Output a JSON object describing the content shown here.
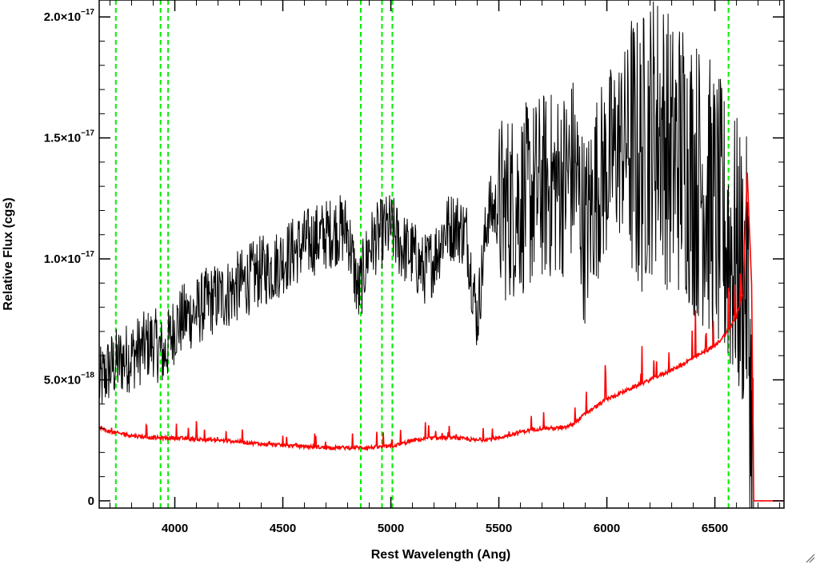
{
  "chart_data": {
    "type": "line",
    "title": "",
    "xlabel": "Rest Wavelength (Ang)",
    "ylabel": "Relative Flux (cgs)",
    "xlim": [
      3650,
      6820
    ],
    "ylim": [
      -3e-19,
      2.07e-17
    ],
    "x_ticks": [
      {
        "value": 4000,
        "label": "4000"
      },
      {
        "value": 4500,
        "label": "4500"
      },
      {
        "value": 5000,
        "label": "5000"
      },
      {
        "value": 5500,
        "label": "5500"
      },
      {
        "value": 6000,
        "label": "6000"
      },
      {
        "value": 6500,
        "label": "6500"
      }
    ],
    "y_ticks": [
      {
        "value": 0,
        "mant": "0",
        "exp": ""
      },
      {
        "value": 5e-18,
        "mant": "5.0×10",
        "exp": "−18"
      },
      {
        "value": 1e-17,
        "mant": "1.0×10",
        "exp": "−17"
      },
      {
        "value": 1.5e-17,
        "mant": "1.5×10",
        "exp": "−17"
      },
      {
        "value": 2e-17,
        "mant": "2.0×10",
        "exp": "−17"
      }
    ],
    "series": [
      {
        "color": "#000000",
        "x": [
          3650,
          3700,
          3750,
          3800,
          3850,
          3900,
          3950,
          4000,
          4050,
          4100,
          4150,
          4200,
          4250,
          4300,
          4350,
          4400,
          4450,
          4500,
          4550,
          4600,
          4650,
          4700,
          4750,
          4800,
          4850,
          4900,
          4950,
          5000,
          5050,
          5100,
          5150,
          5200,
          5250,
          5300,
          5350,
          5400,
          5450,
          5500,
          5550,
          5600,
          5650,
          5700,
          5750,
          5800,
          5850,
          5900,
          5950,
          6000,
          6050,
          6100,
          6150,
          6200,
          6250,
          6300,
          6350,
          6400,
          6450,
          6500,
          6550,
          6600,
          6650,
          6680
        ],
        "y": [
          4.8e-18,
          5.5e-18,
          5.8e-18,
          6e-18,
          6.3e-18,
          6.6e-18,
          6e-18,
          7.2e-18,
          7.6e-18,
          7.8e-18,
          8.2e-18,
          8.4e-18,
          8.6e-18,
          8.9e-18,
          9.2e-18,
          9.5e-18,
          9.6e-18,
          1e-17,
          1.03e-17,
          1.06e-17,
          1.08e-17,
          1.1e-17,
          1.12e-17,
          1.12e-17,
          8.5e-18,
          1.05e-17,
          1.1e-17,
          1.13e-17,
          1.05e-17,
          1.02e-17,
          9.5e-18,
          1e-17,
          1.12e-17,
          1.14e-17,
          1.1e-17,
          7.5e-18,
          1.2e-17,
          1.2e-17,
          1.22e-17,
          1.24e-17,
          1.26e-17,
          1.3e-17,
          1.3e-17,
          1.32e-17,
          1.38e-17,
          1.1e-17,
          1.3e-17,
          1.38e-17,
          1.46e-17,
          1.5e-17,
          1.4e-17,
          1.52e-17,
          1.55e-17,
          1.4e-17,
          1.45e-17,
          1.35e-17,
          1.3e-17,
          1.2e-17,
          1.1e-17,
          1e-17,
          9e-18,
          0.0
        ]
      },
      {
        "color": "#ff0000",
        "x": [
          3650,
          3700,
          3800,
          3900,
          4000,
          4100,
          4200,
          4300,
          4400,
          4500,
          4600,
          4700,
          4800,
          4900,
          5000,
          5050,
          5100,
          5200,
          5300,
          5400,
          5500,
          5600,
          5700,
          5800,
          5850,
          5900,
          5950,
          6000,
          6100,
          6200,
          6300,
          6400,
          6500,
          6550,
          6600,
          6630,
          6650,
          6670,
          6680,
          6700,
          6820
        ],
        "y": [
          3e-18,
          2.85e-18,
          2.7e-18,
          2.6e-18,
          2.6e-18,
          2.55e-18,
          2.5e-18,
          2.45e-18,
          2.35e-18,
          2.3e-18,
          2.25e-18,
          2.2e-18,
          2.2e-18,
          2.2e-18,
          2.25e-18,
          2.35e-18,
          2.5e-18,
          2.6e-18,
          2.6e-18,
          2.5e-18,
          2.6e-18,
          2.85e-18,
          3e-18,
          3e-18,
          3.2e-18,
          3.6e-18,
          3.9e-18,
          4.2e-18,
          4.6e-18,
          5e-18,
          5.4e-18,
          5.9e-18,
          6.4e-18,
          6.9e-18,
          7.6e-18,
          8.6e-18,
          1.35e-17,
          9e-18,
          0.0,
          0.0,
          0.0
        ]
      }
    ],
    "vertical_lines": {
      "color": "#00ee00",
      "style": "dashed",
      "x": [
        3727,
        3934,
        3969,
        4861,
        4959,
        5007,
        6563
      ]
    }
  }
}
